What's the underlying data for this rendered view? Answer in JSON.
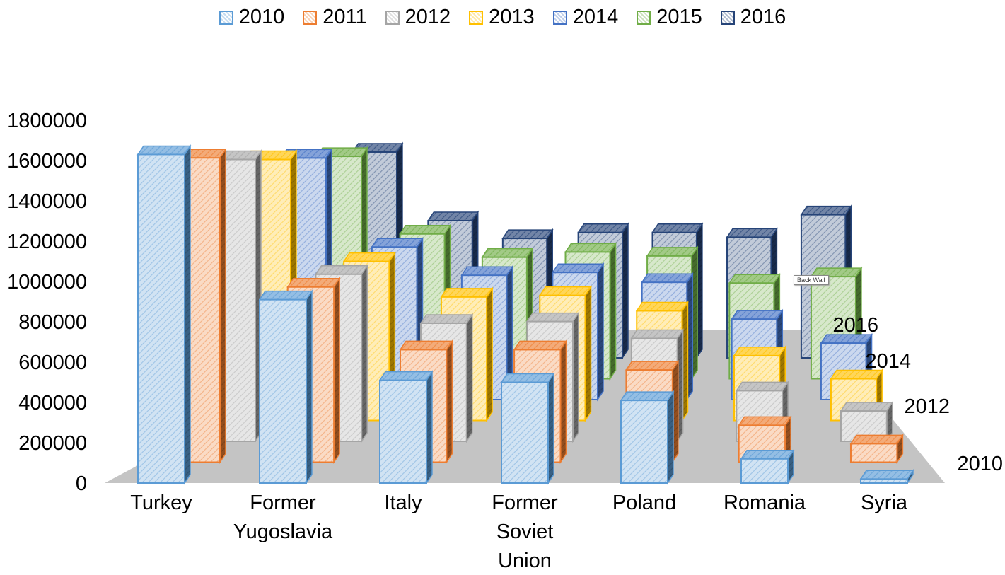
{
  "chart_data": {
    "type": "bar",
    "title": "",
    "xlabel": "",
    "ylabel": "",
    "ylim": [
      0,
      1800000
    ],
    "y_ticks": [
      "0",
      "200000",
      "400000",
      "600000",
      "800000",
      "1000000",
      "1200000",
      "1400000",
      "1600000",
      "1800000"
    ],
    "categories": [
      "Turkey",
      "Former Yugoslavia",
      "Italy",
      "Former Soviet Union",
      "Poland",
      "Romania",
      "Syria"
    ],
    "category_lines": [
      [
        "Turkey"
      ],
      [
        "Former",
        "Yugoslavia"
      ],
      [
        "Italy"
      ],
      [
        "Former",
        "Soviet",
        "Union"
      ],
      [
        "Poland"
      ],
      [
        "Romania"
      ],
      [
        "Syria"
      ]
    ],
    "depth_labels": [
      "2010",
      "2012",
      "2014",
      "2016"
    ],
    "legend_position": "top",
    "series": [
      {
        "name": "2010",
        "color": "#5B9BD5",
        "values": [
          1630000,
          910000,
          510000,
          500000,
          410000,
          120000,
          20000
        ]
      },
      {
        "name": "2011",
        "color": "#ED7D31",
        "values": [
          1650000,
          950000,
          610000,
          610000,
          500000,
          200000,
          100000
        ]
      },
      {
        "name": "2012",
        "color": "#A5A5A5",
        "values": [
          1670000,
          990000,
          700000,
          710000,
          610000,
          300000,
          180000
        ]
      },
      {
        "name": "2013",
        "color": "#FFC000",
        "values": [
          1690000,
          1030000,
          800000,
          810000,
          710000,
          420000,
          270000
        ]
      },
      {
        "name": "2014",
        "color": "#4472C4",
        "values": [
          1710000,
          1080000,
          880000,
          900000,
          830000,
          570000,
          400000
        ]
      },
      {
        "name": "2015",
        "color": "#70AD47",
        "values": [
          1720000,
          1120000,
          940000,
          980000,
          950000,
          740000,
          790000
        ]
      },
      {
        "name": "2016",
        "color": "#264478",
        "values": [
          1740000,
          1160000,
          1010000,
          1060000,
          1060000,
          1020000,
          1210000
        ]
      }
    ]
  },
  "tooltip": {
    "text": "Back Wall"
  }
}
